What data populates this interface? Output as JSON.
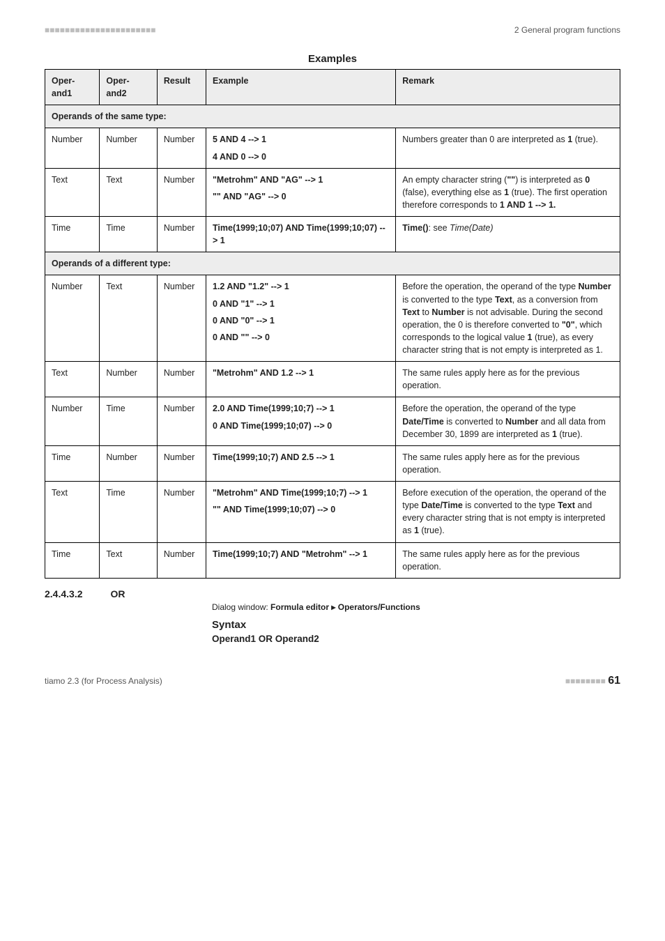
{
  "header": {
    "left_dots": "■■■■■■■■■■■■■■■■■■■■■■",
    "right": "2 General program functions"
  },
  "examples_title": "Examples",
  "columns": {
    "op1": "Oper-\nand1",
    "op2": "Oper-\nand2",
    "res": "Result",
    "ex": "Example",
    "rem": "Remark"
  },
  "section_same": "Operands of the same type:",
  "section_diff": "Operands of a different type:",
  "rows_same": [
    {
      "op1": "Number",
      "op2": "Number",
      "res": "Number",
      "example_lines": [
        "5 AND 4 --> 1",
        "4 AND 0 --> 0"
      ],
      "remark_html": "Numbers greater than 0 are interpreted as <b>1</b> (true)."
    },
    {
      "op1": "Text",
      "op2": "Text",
      "res": "Number",
      "example_lines": [
        "\"Metrohm\" AND \"AG\" --> 1",
        "\"\" AND \"AG\" --> 0"
      ],
      "remark_html": "An empty character string (<b>\"\"</b>) is interpreted as <b>0</b> (false), everything else as <b>1</b> (true). The first operation therefore corresponds to <b>1 AND 1 --> 1.</b>"
    },
    {
      "op1": "Time",
      "op2": "Time",
      "res": "Number",
      "example_lines": [
        "Time(1999;10;07) AND Time(1999;10;07) --> 1"
      ],
      "remark_html": "<b>Time()</b>: see <i>Time(Date)</i>"
    }
  ],
  "rows_diff": [
    {
      "op1": "Number",
      "op2": "Text",
      "res": "Number",
      "example_lines": [
        "1.2 AND \"1.2\" --> 1",
        "0 AND \"1\" --> 1",
        "0 AND \"0\" --> 1",
        "0 AND \"\" --> 0"
      ],
      "remark_html": "Before the operation, the operand of the type <b>Number</b> is converted to the type <b>Text</b>, as a conversion from <b>Text</b> to <b>Number</b> is not advisable. During the second operation, the 0 is therefore converted to <b>\"0\"</b>, which corresponds to the logical value <b>1</b> (true), as every character string that is not empty is interpreted as 1."
    },
    {
      "op1": "Text",
      "op2": "Number",
      "res": "Number",
      "example_lines": [
        "\"Metrohm\" AND 1.2 --> 1"
      ],
      "remark_html": "The same rules apply here as for the previous operation."
    },
    {
      "op1": "Number",
      "op2": "Time",
      "res": "Number",
      "example_lines": [
        "2.0 AND Time(1999;10;7) --> 1",
        "0 AND Time(1999;10;07) --> 0"
      ],
      "remark_html": "Before the operation, the operand of the type <b>Date/Time</b> is converted to <b>Number</b> and all data from December 30, 1899 are interpreted as <b>1</b> (true)."
    },
    {
      "op1": "Time",
      "op2": "Number",
      "res": "Number",
      "example_lines": [
        "Time(1999;10;7) AND 2.5 --> 1"
      ],
      "remark_html": "The same rules apply here as for the previous operation."
    },
    {
      "op1": "Text",
      "op2": "Time",
      "res": "Number",
      "example_lines": [
        "\"Metrohm\" AND Time(1999;10;7) --> 1",
        "\"\" AND Time(1999;10;07) --> 0"
      ],
      "remark_html": "Before execution of the operation, the operand of the type <b>Date/Time</b> is converted to the type <b>Text</b> and every character string that is not empty is interpreted as <b>1</b> (true)."
    },
    {
      "op1": "Time",
      "op2": "Text",
      "res": "Number",
      "example_lines": [
        "Time(1999;10;7) AND \"Metrohm\" --> 1"
      ],
      "remark_html": "The same rules apply here as for the previous operation."
    }
  ],
  "secnum": "2.4.4.3.2",
  "sectitle": "OR",
  "dialog_line_html": "Dialog window: <b>Formula editor ▸ Operators/Functions</b>",
  "syntax_title": "Syntax",
  "syntax_sub": "Operand1 OR Operand2",
  "footer": {
    "left": "tiamo 2.3 (for Process Analysis)",
    "right_dots": "■■■■■■■■",
    "page": "61"
  }
}
